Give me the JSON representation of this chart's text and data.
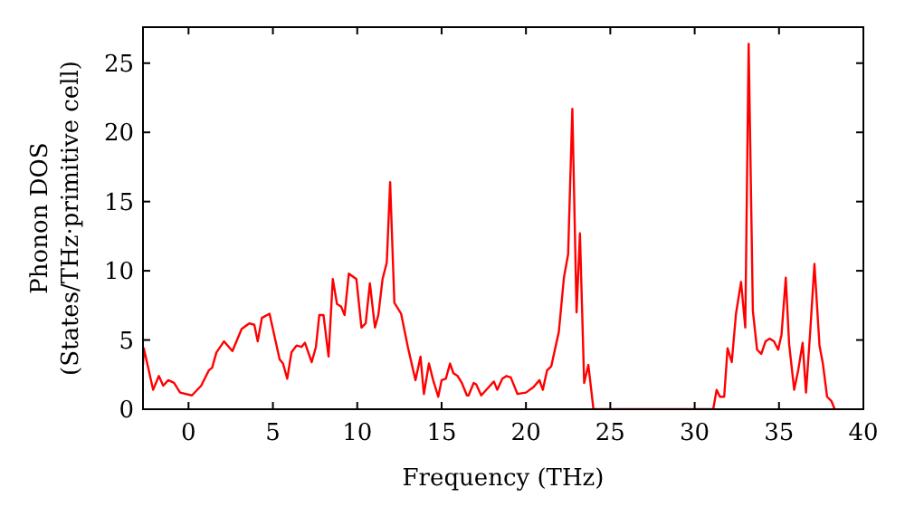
{
  "chart_data": {
    "type": "line",
    "xlabel": "Frequency (THz)",
    "ylabel": "Phonon DOS\n(States/THz·primitive cell)",
    "xlim": [
      -2.7,
      40
    ],
    "ylim": [
      0,
      27.6
    ],
    "xticks": [
      0,
      5,
      10,
      15,
      20,
      25,
      30,
      35,
      40
    ],
    "yticks": [
      0,
      5,
      10,
      15,
      20,
      25
    ],
    "grid": false,
    "marker": "none",
    "line_style": "solid",
    "series": [
      {
        "color": "#ff0000",
        "x": [
          -2.7,
          -2.65,
          -2.1,
          -1.76,
          -1.5,
          -1.2,
          -0.86,
          -0.5,
          0.2,
          0.75,
          1.2,
          1.4,
          1.65,
          2.1,
          2.6,
          3.15,
          3.6,
          3.9,
          4.1,
          4.35,
          4.8,
          5.4,
          5.6,
          5.85,
          6.1,
          6.4,
          6.7,
          6.9,
          7.3,
          7.55,
          7.75,
          8.0,
          8.3,
          8.55,
          8.8,
          9.05,
          9.25,
          9.5,
          9.95,
          10.25,
          10.5,
          10.75,
          11.05,
          11.25,
          11.5,
          11.75,
          11.95,
          12.2,
          12.6,
          13.0,
          13.45,
          13.75,
          13.95,
          14.25,
          14.5,
          14.8,
          15.0,
          15.25,
          15.5,
          15.7,
          15.95,
          16.2,
          16.5,
          16.6,
          16.9,
          17.05,
          17.35,
          17.8,
          18.1,
          18.3,
          18.6,
          18.85,
          19.1,
          19.5,
          20.0,
          20.45,
          20.8,
          21.0,
          21.25,
          21.5,
          21.95,
          22.25,
          22.5,
          22.75,
          23.0,
          23.2,
          23.45,
          23.7,
          24.0,
          31.1,
          31.3,
          31.5,
          31.75,
          31.95,
          32.2,
          32.45,
          32.75,
          33.0,
          33.2,
          33.45,
          33.7,
          33.95,
          34.2,
          34.45,
          34.7,
          34.95,
          35.15,
          35.4,
          35.6,
          35.9,
          36.15,
          36.4,
          36.6,
          36.85,
          37.1,
          37.4,
          37.6,
          37.85,
          38.1,
          38.3
        ],
        "values": [
          3.2,
          4.4,
          1.4,
          2.4,
          1.7,
          2.1,
          1.9,
          1.2,
          1.0,
          1.7,
          2.8,
          3.0,
          4.1,
          4.9,
          4.2,
          5.8,
          6.2,
          6.1,
          4.9,
          6.6,
          6.9,
          3.6,
          3.3,
          2.2,
          4.1,
          4.6,
          4.5,
          4.8,
          3.4,
          4.5,
          6.8,
          6.8,
          3.8,
          9.4,
          7.6,
          7.4,
          6.8,
          9.8,
          9.4,
          5.9,
          6.2,
          9.1,
          5.9,
          6.8,
          9.4,
          10.6,
          16.4,
          7.7,
          6.9,
          4.5,
          2.1,
          3.8,
          1.1,
          3.3,
          2.1,
          0.9,
          2.1,
          2.2,
          3.3,
          2.6,
          2.4,
          1.9,
          1.0,
          1.0,
          1.9,
          1.8,
          1.0,
          1.6,
          2.0,
          1.4,
          2.2,
          2.4,
          2.3,
          1.1,
          1.2,
          1.6,
          2.1,
          1.4,
          2.8,
          3.1,
          5.6,
          9.5,
          11.2,
          21.7,
          7.0,
          12.7,
          1.9,
          3.2,
          0,
          0,
          1.4,
          0.9,
          0.9,
          4.4,
          3.4,
          6.9,
          9.2,
          5.9,
          26.4,
          7.1,
          4.3,
          4.0,
          4.9,
          5.1,
          4.9,
          4.3,
          5.4,
          9.5,
          4.7,
          1.4,
          2.9,
          4.8,
          1.2,
          5.6,
          10.5,
          4.6,
          3.3,
          0.9,
          0.6,
          0
        ]
      }
    ]
  }
}
